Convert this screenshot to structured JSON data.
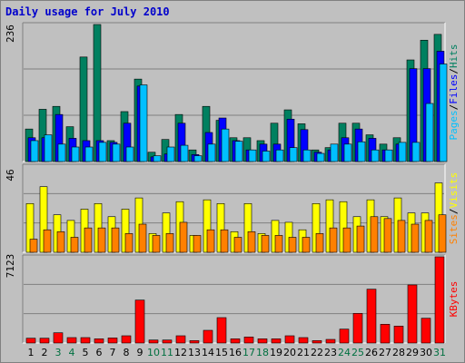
{
  "title": "Daily usage for July 2010",
  "colors": {
    "hits": "#008060",
    "files": "#0000ff",
    "pages": "#00c0ff",
    "visits": "#ffff00",
    "sites": "#ff8000",
    "kbytes": "#ff0000",
    "weekend_label": "#007040",
    "weekday_label": "#000000",
    "title": "#0000cc"
  },
  "chart_data": [
    {
      "type": "bar",
      "panel": "top",
      "ymax_label": "236",
      "ylim": [
        0,
        236
      ],
      "categories": [
        "1",
        "2",
        "3",
        "4",
        "5",
        "6",
        "7",
        "8",
        "9",
        "10",
        "11",
        "12",
        "13",
        "14",
        "15",
        "16",
        "17",
        "18",
        "19",
        "20",
        "21",
        "22",
        "23",
        "24",
        "25",
        "26",
        "27",
        "28",
        "29",
        "30",
        "31"
      ],
      "weekend_days": [
        "3",
        "4",
        "10",
        "11",
        "17",
        "18",
        "24",
        "25",
        "31"
      ],
      "legend": [
        "Pages",
        "/",
        "Files",
        "/",
        "Hits"
      ],
      "series": [
        {
          "name": "Hits",
          "values": [
            56,
            90,
            95,
            60,
            180,
            236,
            36,
            86,
            142,
            16,
            38,
            81,
            20,
            95,
            71,
            41,
            41,
            36,
            66,
            89,
            65,
            20,
            24,
            66,
            66,
            46,
            30,
            41,
            175,
            209,
            219
          ]
        },
        {
          "name": "Files",
          "values": [
            41,
            41,
            81,
            40,
            36,
            36,
            33,
            66,
            130,
            8,
            13,
            66,
            12,
            50,
            75,
            36,
            20,
            30,
            30,
            73,
            55,
            16,
            20,
            41,
            56,
            40,
            20,
            30,
            160,
            160,
            190
          ]
        },
        {
          "name": "Pages",
          "values": [
            36,
            46,
            30,
            25,
            25,
            33,
            30,
            25,
            132,
            10,
            25,
            28,
            10,
            30,
            56,
            35,
            20,
            18,
            20,
            24,
            20,
            14,
            30,
            30,
            34,
            20,
            20,
            33,
            33,
            100,
            168
          ]
        }
      ]
    },
    {
      "type": "bar",
      "panel": "middle",
      "ymax_label": "46",
      "ylim": [
        0,
        46
      ],
      "categories": [
        "1",
        "2",
        "3",
        "4",
        "5",
        "6",
        "7",
        "8",
        "9",
        "10",
        "11",
        "12",
        "13",
        "14",
        "15",
        "16",
        "17",
        "18",
        "19",
        "20",
        "21",
        "22",
        "23",
        "24",
        "25",
        "26",
        "27",
        "28",
        "29",
        "30",
        "31"
      ],
      "legend": [
        "Sites",
        "/",
        "Visits"
      ],
      "series": [
        {
          "name": "Visits",
          "values": [
            26,
            35,
            20,
            17,
            23,
            26,
            19,
            23,
            29,
            10,
            21,
            27,
            9,
            28,
            26,
            11,
            26,
            10,
            17,
            16,
            12,
            26,
            28,
            27,
            19,
            28,
            19,
            29,
            21,
            21,
            37
          ]
        },
        {
          "name": "Sites",
          "values": [
            7,
            12,
            11,
            8,
            13,
            13,
            13,
            10,
            15,
            9,
            10,
            16,
            9,
            12,
            12,
            8,
            11,
            9,
            9,
            8,
            8,
            10,
            13,
            13,
            14,
            19,
            18,
            17,
            15,
            17,
            20
          ]
        }
      ]
    },
    {
      "type": "bar",
      "panel": "bottom",
      "ymax_label": "7123",
      "ylim": [
        0,
        7123
      ],
      "categories": [
        "1",
        "2",
        "3",
        "4",
        "5",
        "6",
        "7",
        "8",
        "9",
        "10",
        "11",
        "12",
        "13",
        "14",
        "15",
        "16",
        "17",
        "18",
        "19",
        "20",
        "21",
        "22",
        "23",
        "24",
        "25",
        "26",
        "27",
        "28",
        "29",
        "30",
        "31"
      ],
      "legend": [
        "KBytes"
      ],
      "series": [
        {
          "name": "KBytes",
          "values": [
            400,
            400,
            850,
            450,
            450,
            350,
            420,
            600,
            3550,
            250,
            250,
            600,
            200,
            1050,
            2100,
            350,
            500,
            350,
            350,
            600,
            450,
            200,
            300,
            1150,
            2450,
            4450,
            1550,
            1400,
            4800,
            2050,
            7123
          ]
        }
      ]
    }
  ]
}
